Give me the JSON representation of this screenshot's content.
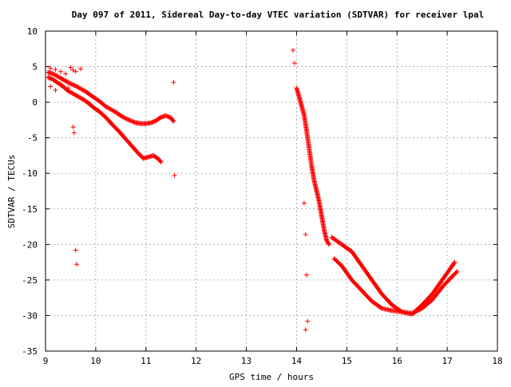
{
  "chart_data": {
    "type": "scatter",
    "title": "Day 097 of 2011, Sidereal Day-to-day VTEC variation (SDTVAR) for receiver lpal",
    "xlabel": "GPS time / hours",
    "ylabel": "SDTVAR / TECUs",
    "xlim": [
      9,
      18
    ],
    "ylim": [
      -35,
      10
    ],
    "xticks": [
      9,
      10,
      11,
      12,
      13,
      14,
      15,
      16,
      17,
      18
    ],
    "yticks": [
      10,
      5,
      0,
      -5,
      -10,
      -15,
      -20,
      -25,
      -30,
      -35
    ],
    "grid": true,
    "marker_color": "#ff0000",
    "marker": "+",
    "series": [
      {
        "name": "early-upper-band",
        "points": [
          [
            9.05,
            4.2
          ],
          [
            9.15,
            4.0
          ],
          [
            9.25,
            3.6
          ],
          [
            9.4,
            3.0
          ],
          [
            9.5,
            2.6
          ],
          [
            9.6,
            2.3
          ],
          [
            9.7,
            1.9
          ],
          [
            9.8,
            1.5
          ],
          [
            9.9,
            1.0
          ],
          [
            10.0,
            0.5
          ],
          [
            10.1,
            0.0
          ],
          [
            10.2,
            -0.6
          ],
          [
            10.3,
            -1.0
          ],
          [
            10.4,
            -1.4
          ],
          [
            10.5,
            -1.9
          ],
          [
            10.6,
            -2.3
          ],
          [
            10.7,
            -2.6
          ],
          [
            10.8,
            -2.9
          ],
          [
            10.9,
            -3.0
          ],
          [
            11.0,
            -3.0
          ],
          [
            11.1,
            -2.9
          ],
          [
            11.2,
            -2.6
          ],
          [
            11.3,
            -2.1
          ],
          [
            11.4,
            -1.9
          ],
          [
            11.5,
            -2.2
          ],
          [
            11.55,
            -2.7
          ]
        ]
      },
      {
        "name": "early-lower-band",
        "points": [
          [
            9.05,
            3.5
          ],
          [
            9.15,
            3.2
          ],
          [
            9.25,
            2.7
          ],
          [
            9.35,
            2.2
          ],
          [
            9.45,
            1.6
          ],
          [
            9.55,
            1.2
          ],
          [
            9.65,
            0.8
          ],
          [
            9.75,
            0.4
          ],
          [
            9.85,
            -0.1
          ],
          [
            9.95,
            -0.7
          ],
          [
            10.05,
            -1.2
          ],
          [
            10.15,
            -1.8
          ],
          [
            10.25,
            -2.5
          ],
          [
            10.35,
            -3.3
          ],
          [
            10.45,
            -4.0
          ],
          [
            10.55,
            -4.8
          ],
          [
            10.65,
            -5.6
          ],
          [
            10.75,
            -6.4
          ],
          [
            10.85,
            -7.2
          ],
          [
            10.95,
            -7.9
          ],
          [
            11.05,
            -7.7
          ],
          [
            11.15,
            -7.5
          ],
          [
            11.25,
            -8.0
          ],
          [
            11.3,
            -8.4
          ]
        ]
      },
      {
        "name": "early-cluster",
        "points": [
          [
            9.1,
            4.8
          ],
          [
            9.2,
            4.6
          ],
          [
            9.3,
            4.3
          ],
          [
            9.4,
            4.0
          ],
          [
            9.5,
            4.9
          ],
          [
            9.55,
            4.5
          ],
          [
            9.6,
            4.3
          ],
          [
            9.7,
            4.7
          ],
          [
            9.1,
            2.2
          ],
          [
            9.2,
            1.7
          ],
          [
            9.3,
            2.6
          ],
          [
            9.45,
            2.0
          ]
        ]
      },
      {
        "name": "late-descent",
        "points": [
          [
            14.0,
            2.0
          ],
          [
            14.05,
            0.8
          ],
          [
            14.1,
            -0.5
          ],
          [
            14.15,
            -1.8
          ],
          [
            14.2,
            -4.0
          ],
          [
            14.25,
            -6.5
          ],
          [
            14.3,
            -9.0
          ],
          [
            14.35,
            -11.0
          ],
          [
            14.4,
            -12.5
          ],
          [
            14.45,
            -14.0
          ],
          [
            14.5,
            -16.0
          ],
          [
            14.55,
            -18.0
          ],
          [
            14.6,
            -19.5
          ],
          [
            14.65,
            -20.0
          ]
        ]
      },
      {
        "name": "late-upper-band",
        "points": [
          [
            14.7,
            -19.0
          ],
          [
            14.9,
            -20.0
          ],
          [
            15.1,
            -21.0
          ],
          [
            15.3,
            -23.0
          ],
          [
            15.5,
            -25.0
          ],
          [
            15.7,
            -27.0
          ],
          [
            15.9,
            -28.5
          ],
          [
            16.1,
            -29.5
          ],
          [
            16.3,
            -29.8
          ],
          [
            16.5,
            -28.5
          ],
          [
            16.7,
            -27.0
          ],
          [
            16.9,
            -25.0
          ],
          [
            17.05,
            -23.5
          ],
          [
            17.15,
            -22.5
          ]
        ]
      },
      {
        "name": "late-lower-band",
        "points": [
          [
            14.75,
            -22.0
          ],
          [
            14.9,
            -23.0
          ],
          [
            15.1,
            -25.0
          ],
          [
            15.3,
            -26.5
          ],
          [
            15.5,
            -28.0
          ],
          [
            15.7,
            -29.0
          ],
          [
            15.9,
            -29.3
          ],
          [
            16.1,
            -29.5
          ],
          [
            16.3,
            -29.7
          ],
          [
            16.5,
            -29.0
          ],
          [
            16.7,
            -27.8
          ],
          [
            16.9,
            -26.0
          ],
          [
            17.1,
            -24.5
          ],
          [
            17.2,
            -23.8
          ]
        ]
      },
      {
        "name": "outliers",
        "points": [
          [
            9.55,
            -3.5
          ],
          [
            9.57,
            -4.3
          ],
          [
            9.6,
            -20.8
          ],
          [
            9.62,
            -22.8
          ],
          [
            11.55,
            2.8
          ],
          [
            11.57,
            -10.3
          ],
          [
            13.93,
            7.3
          ],
          [
            13.96,
            5.5
          ],
          [
            14.15,
            -14.2
          ],
          [
            14.18,
            -18.6
          ],
          [
            14.2,
            -24.3
          ],
          [
            14.22,
            -30.8
          ],
          [
            14.18,
            -32.0
          ]
        ]
      }
    ]
  }
}
